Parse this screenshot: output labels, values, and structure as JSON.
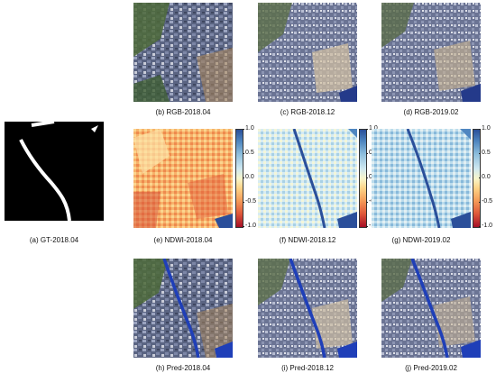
{
  "captions": {
    "a": "(a) GT-2018.04",
    "b": "(b) RGB-2018.04",
    "c": "(c) RGB-2018.12",
    "d": "(d) RGB-2019.02",
    "e": "(e) NDWI-2018.04",
    "f": "(f) NDWI-2018.12",
    "g": "(g) NDWI-2019.02",
    "h": "(h) Pred-2018.04",
    "i": "(i) Pred-2018.12",
    "j": "(j) Pred-2019.02"
  },
  "colorbar_ticks": [
    "1.0",
    "0.5",
    "0.0",
    "-0.5",
    "-1.0"
  ],
  "colors": {
    "water_pred": "#1f3fb8",
    "ndwi_high": "#2b4f9a",
    "ndwi_low": "#a50f26"
  }
}
